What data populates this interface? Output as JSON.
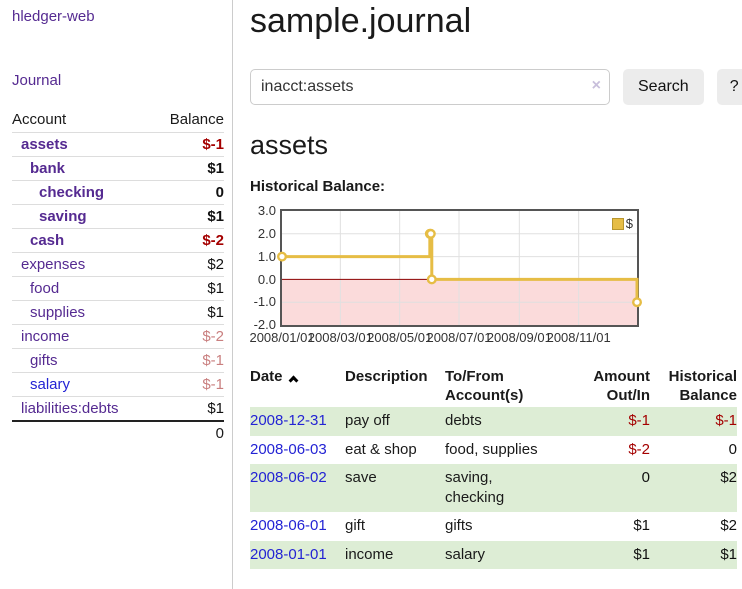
{
  "colors": {
    "purple": "#552a91",
    "blue": "#2323d4",
    "negative_strong": "#a40000",
    "negative_soft": "#c97f7f",
    "row_stripe_green": "#ddedd5",
    "button_bg": "#ececec",
    "chart_line": "#e6bd45",
    "chart_negative_fill": "#fbdbdb",
    "chart_zero_line": "#8b0000"
  },
  "app": {
    "brand": "hledger-web",
    "nav_journal": "Journal"
  },
  "sidebar": {
    "headers": [
      "Account",
      "Balance"
    ],
    "rows": [
      {
        "label": "assets",
        "indent": 0,
        "bold": true,
        "link_color": "purple",
        "balance": "$-1",
        "balance_color": "strong"
      },
      {
        "label": "bank",
        "indent": 1,
        "bold": true,
        "link_color": "purple",
        "balance": "$1",
        "balance_color": "default"
      },
      {
        "label": "checking",
        "indent": 2,
        "bold": true,
        "link_color": "purple",
        "balance": "0",
        "balance_color": "default"
      },
      {
        "label": "saving",
        "indent": 2,
        "bold": true,
        "link_color": "purple",
        "balance": "$1",
        "balance_color": "default"
      },
      {
        "label": "cash",
        "indent": 1,
        "bold": true,
        "link_color": "purple",
        "balance": "$-2",
        "balance_color": "strong"
      },
      {
        "label": "expenses",
        "indent": 0,
        "bold": false,
        "link_color": "purple",
        "balance": "$2",
        "balance_color": "default"
      },
      {
        "label": "food",
        "indent": 1,
        "bold": false,
        "link_color": "purple",
        "balance": "$1",
        "balance_color": "default"
      },
      {
        "label": "supplies",
        "indent": 1,
        "bold": false,
        "link_color": "purple",
        "balance": "$1",
        "balance_color": "default"
      },
      {
        "label": "income",
        "indent": 0,
        "bold": false,
        "link_color": "purple",
        "balance": "$-2",
        "balance_color": "soft"
      },
      {
        "label": "gifts",
        "indent": 1,
        "bold": false,
        "link_color": "purple",
        "balance": "$-1",
        "balance_color": "soft"
      },
      {
        "label": "salary",
        "indent": 1,
        "bold": false,
        "link_color": "blue",
        "balance": "$-1",
        "balance_color": "soft"
      },
      {
        "label": "liabilities:debts",
        "indent": 0,
        "bold": false,
        "link_color": "purple",
        "balance": "$1",
        "balance_color": "default"
      }
    ],
    "total": "0"
  },
  "main": {
    "title": "sample.journal",
    "search": {
      "value": "inacct:assets",
      "clear_icon": "×",
      "button_label": "Search",
      "help_label": "?"
    },
    "account_heading": "assets",
    "chart_data": {
      "type": "line",
      "step": true,
      "title": "Historical Balance:",
      "xlim": [
        "2008-01-01",
        "2008-12-31"
      ],
      "ylim": [
        -2,
        3
      ],
      "grid": true,
      "legend_position": "top-right",
      "negative_region_shaded": true,
      "y_ticks": [
        {
          "value": 3,
          "label": "3.0"
        },
        {
          "value": 2,
          "label": "2.0"
        },
        {
          "value": 1,
          "label": "1.0"
        },
        {
          "value": 0,
          "label": "0.0"
        },
        {
          "value": -1,
          "label": "-1.0"
        },
        {
          "value": -2,
          "label": "-2.0"
        }
      ],
      "x_ticks": [
        {
          "date": "2008-01-01",
          "label": "2008/01/01"
        },
        {
          "date": "2008-03-01",
          "label": "2008/03/01"
        },
        {
          "date": "2008-05-01",
          "label": "2008/05/01"
        },
        {
          "date": "2008-07-01",
          "label": "2008/07/01"
        },
        {
          "date": "2008-09-01",
          "label": "2008/09/01"
        },
        {
          "date": "2008-11-01",
          "label": "2008/11/01"
        }
      ],
      "series": [
        {
          "name": "$",
          "points": [
            {
              "date": "2008-01-01",
              "value": 1
            },
            {
              "date": "2008-06-01",
              "value": 2
            },
            {
              "date": "2008-06-02",
              "value": 2
            },
            {
              "date": "2008-06-03",
              "value": 0
            },
            {
              "date": "2008-12-31",
              "value": -1
            }
          ]
        }
      ]
    },
    "register": {
      "headers": [
        {
          "label": "Date",
          "sorted": "asc",
          "align": "left"
        },
        {
          "label": "Description",
          "align": "left"
        },
        {
          "label": "To/From Account(s)",
          "align": "left"
        },
        {
          "label": "Amount Out/In",
          "align": "right"
        },
        {
          "label": "Historical Balance",
          "align": "right"
        }
      ],
      "rows": [
        {
          "date": "2008-12-31",
          "description": "pay off",
          "accounts": "debts",
          "amount": "$-1",
          "amount_color": "strong",
          "balance": "$-1",
          "balance_color": "strong"
        },
        {
          "date": "2008-06-03",
          "description": "eat & shop",
          "accounts": "food, supplies",
          "amount": "$-2",
          "amount_color": "strong",
          "balance": "0",
          "balance_color": "default"
        },
        {
          "date": "2008-06-02",
          "description": "save",
          "accounts": "saving,\nchecking",
          "amount": "0",
          "amount_color": "default",
          "balance": "$2",
          "balance_color": "default"
        },
        {
          "date": "2008-06-01",
          "description": "gift",
          "accounts": "gifts",
          "amount": "$1",
          "amount_color": "default",
          "balance": "$2",
          "balance_color": "default"
        },
        {
          "date": "2008-01-01",
          "description": "income",
          "accounts": "salary",
          "amount": "$1",
          "amount_color": "default",
          "balance": "$1",
          "balance_color": "default"
        }
      ]
    }
  }
}
